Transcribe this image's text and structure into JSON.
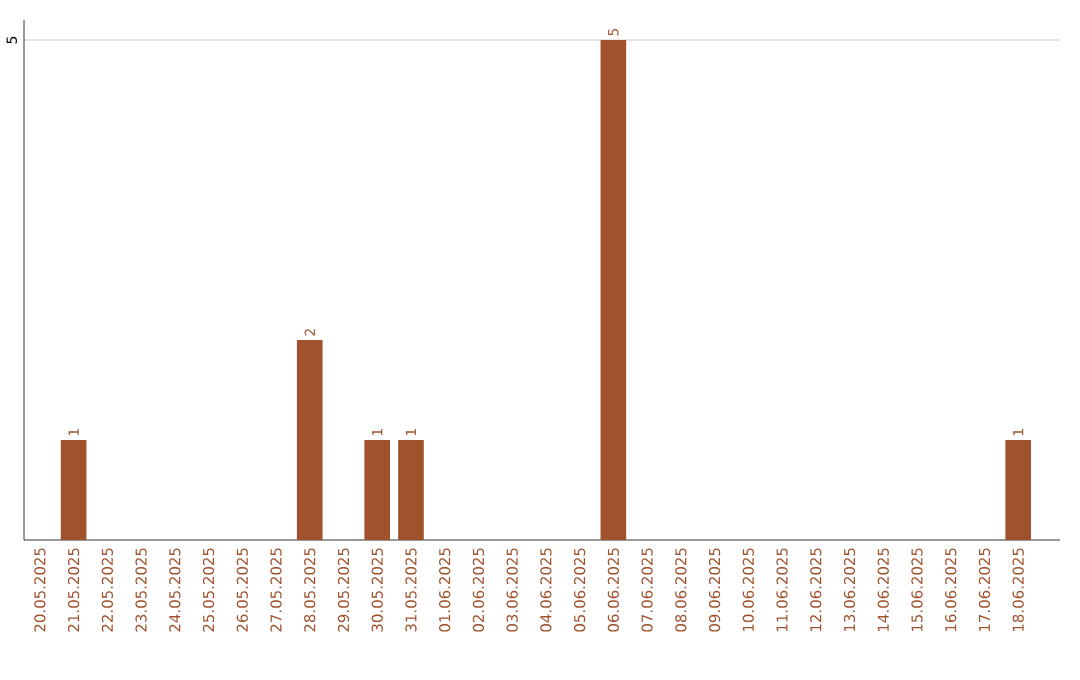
{
  "chart_data": {
    "type": "bar",
    "categories": [
      "20.05.2025",
      "21.05.2025",
      "22.05.2025",
      "23.05.2025",
      "24.05.2025",
      "25.05.2025",
      "26.05.2025",
      "27.05.2025",
      "28.05.2025",
      "29.05.2025",
      "30.05.2025",
      "31.05.2025",
      "01.06.2025",
      "02.06.2025",
      "03.06.2025",
      "04.06.2025",
      "05.06.2025",
      "06.06.2025",
      "07.06.2025",
      "08.06.2025",
      "09.06.2025",
      "10.06.2025",
      "11.06.2025",
      "12.06.2025",
      "13.06.2025",
      "14.06.2025",
      "15.06.2025",
      "16.06.2025",
      "17.06.2025",
      "18.06.2025"
    ],
    "values": [
      0,
      1,
      0,
      0,
      0,
      0,
      0,
      0,
      2,
      0,
      1,
      1,
      0,
      0,
      0,
      0,
      0,
      5,
      0,
      0,
      0,
      0,
      0,
      0,
      0,
      0,
      0,
      0,
      0,
      1
    ],
    "value_labels": [
      null,
      "1",
      null,
      null,
      null,
      null,
      null,
      null,
      "2",
      null,
      "1",
      "1",
      null,
      null,
      null,
      null,
      null,
      "5",
      null,
      null,
      null,
      null,
      null,
      null,
      null,
      null,
      null,
      null,
      null,
      "1"
    ],
    "color": "#a0522d",
    "ylim": [
      0,
      5.2
    ],
    "yticks": [
      5
    ],
    "grid": "y"
  }
}
